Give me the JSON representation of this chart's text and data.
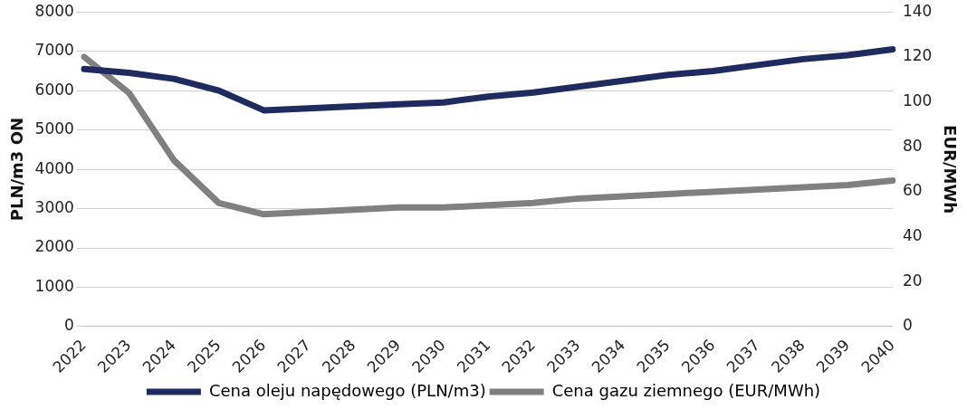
{
  "chart_data": {
    "type": "line",
    "ylabel": "PLN/m3 ON",
    "y2label": "EUR/MWh",
    "categories": [
      "2022",
      "2023",
      "2024",
      "2025",
      "2026",
      "2027",
      "2028",
      "2029",
      "2030",
      "2031",
      "2032",
      "2033",
      "2034",
      "2035",
      "2036",
      "2037",
      "2038",
      "2039",
      "2040"
    ],
    "series": [
      {
        "name": "Cena oleju napędowego (PLN/m3)",
        "color": "#1f2a5e",
        "values": [
          6550,
          6450,
          6300,
          6000,
          5500,
          5550,
          5600,
          5650,
          5700,
          5850,
          5950,
          6100,
          6250,
          6400,
          6500,
          6650,
          6800,
          6900,
          7050
        ]
      },
      {
        "name": "Cena gazu ziemnego (EUR/MWh)",
        "color": "#808080",
        "axis": "y2",
        "values": [
          120,
          104,
          74,
          55,
          50,
          51,
          52,
          53,
          53,
          54,
          55,
          57,
          58,
          59,
          60,
          61,
          62,
          63,
          65
        ]
      }
    ],
    "ylim": [
      0,
      8000
    ],
    "yticks": [
      0,
      1000,
      2000,
      3000,
      4000,
      5000,
      6000,
      7000,
      8000
    ],
    "y2lim": [
      0,
      140
    ],
    "y2ticks": [
      0,
      20,
      40,
      60,
      80,
      100,
      120,
      140
    ],
    "grid": "y",
    "legend": "bottom",
    "marker": "none",
    "line_style": "solid"
  }
}
